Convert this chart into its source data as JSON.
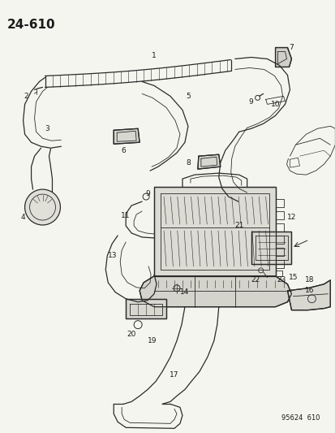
{
  "title": "24-610",
  "footer": "95624  610",
  "bg_color": "#f5f5f0",
  "line_color": "#2a2a2a",
  "label_color": "#1a1a1a",
  "title_fontsize": 11,
  "label_fontsize": 6.5,
  "footer_fontsize": 6,
  "fig_width": 4.14,
  "fig_height": 5.33,
  "dpi": 100
}
